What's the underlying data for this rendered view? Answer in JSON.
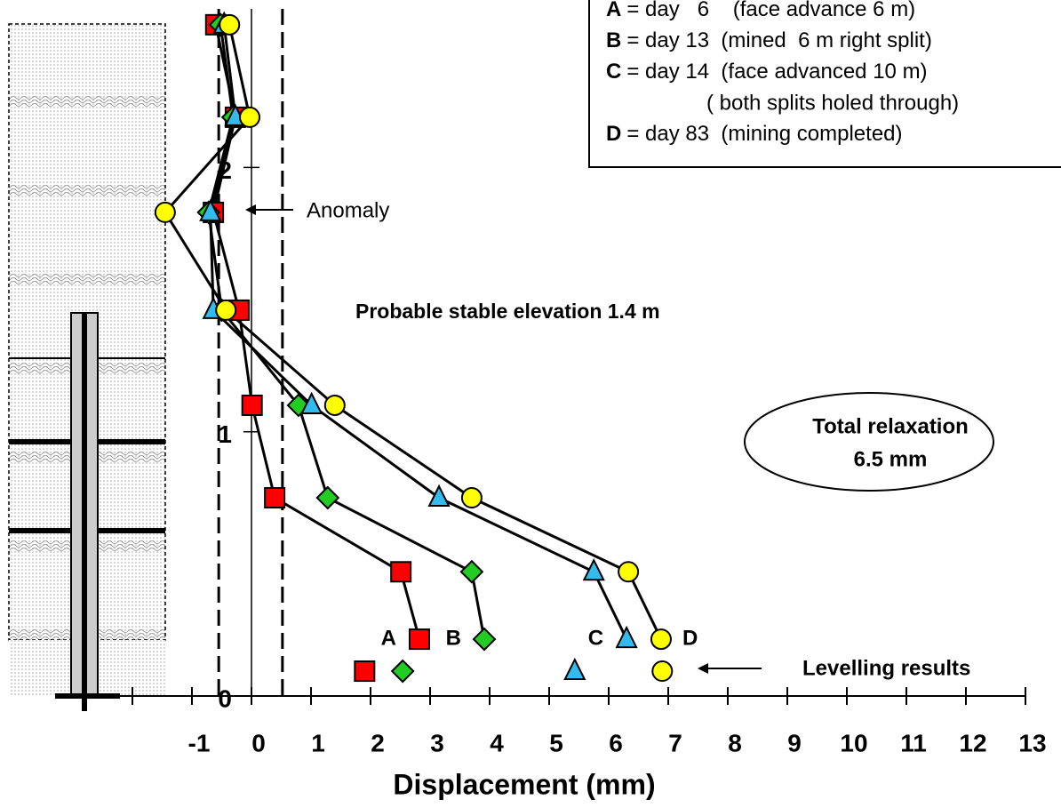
{
  "chart_data": {
    "type": "line",
    "x_label": "Displacement (mm)",
    "xlim": [
      -3.03,
      13
    ],
    "xticks": [
      -1,
      0,
      1,
      2,
      3,
      4,
      5,
      6,
      7,
      8,
      9,
      10,
      11,
      12,
      13
    ],
    "xminor_ticks": [
      -2
    ],
    "ylim": [
      0,
      2.6
    ],
    "yticks": [
      0,
      1,
      2
    ],
    "dashed_lines": [
      -0.55,
      0.52
    ],
    "y": [
      2.54,
      2.19,
      1.83,
      1.46,
      1.1,
      0.75,
      0.47,
      0.215
    ],
    "series": [
      {
        "name": "A",
        "color": "#ff0000",
        "marker": "square",
        "x": [
          -0.6,
          -0.27,
          -0.64,
          -0.21,
          0.01,
          0.39,
          2.51,
          2.82
        ]
      },
      {
        "name": "B",
        "color": "#22cc22",
        "marker": "diamond",
        "x": [
          -0.52,
          -0.31,
          -0.72,
          -0.5,
          0.79,
          1.28,
          3.7,
          3.91
        ]
      },
      {
        "name": "C",
        "color": "#33bbee",
        "marker": "triangle",
        "x": [
          -0.46,
          -0.27,
          -0.69,
          -0.64,
          1.01,
          3.15,
          5.75,
          6.3
        ]
      },
      {
        "name": "D",
        "color": "#ffff00",
        "marker": "circle",
        "x": [
          -0.37,
          -0.03,
          -1.45,
          -0.43,
          1.4,
          3.7,
          6.33,
          6.88
        ]
      }
    ],
    "legend_lines": [
      "= day   6    (face advance 6 m)",
      "= day 13  (mined  6 m right split)",
      "= day 14  (face advanced 10 m)",
      "= day 83  (mining completed)"
    ],
    "legend_note": "( both splits holed through)",
    "levelling": {
      "name": "Levelling results",
      "y": 0.094,
      "x": [
        1.9,
        2.54,
        5.43,
        6.9
      ]
    },
    "annotations": {
      "anomaly": "Anomaly",
      "stable": "Probable stable elevation 1.4 m",
      "relaxation": [
        "Total relaxation",
        "6.5 mm"
      ]
    }
  }
}
